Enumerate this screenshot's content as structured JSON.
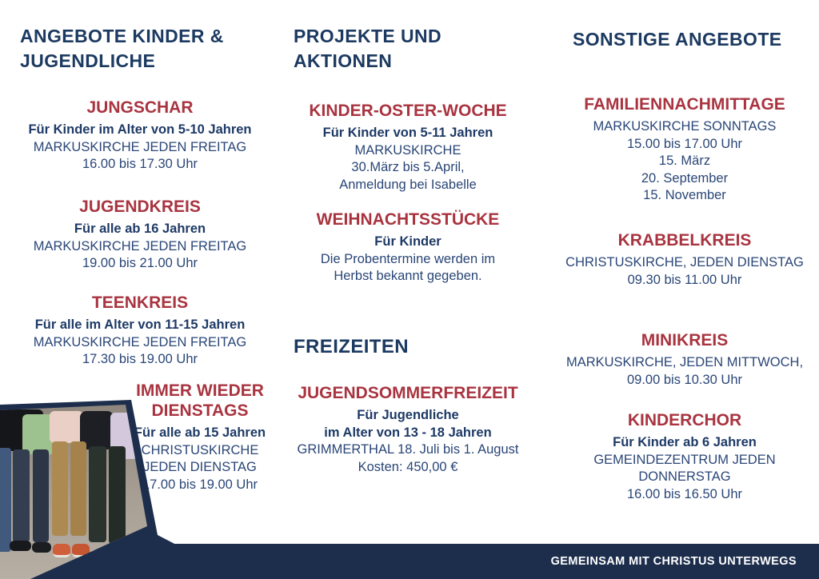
{
  "colors": {
    "navy_heading": "#1c3a61",
    "navy_body": "#2a4677",
    "navy_bar": "#1d2e4d",
    "accent_red": "#a93440",
    "footer_text": "#ffffff"
  },
  "columns": [
    {
      "header": "ANGEBOTE KINDER & JUGENDLICHE",
      "sections": [
        {
          "title": "JUNGSCHAR",
          "lines": [
            "Für Kinder im Alter von 5-10 Jahren",
            "MARKUSKIRCHE JEDEN FREITAG",
            "16.00 bis 17.30 Uhr"
          ]
        },
        {
          "title": "JUGENDKREIS",
          "lines": [
            "Für alle ab 16 Jahren",
            "MARKUSKIRCHE JEDEN FREITAG",
            "19.00 bis 21.00 Uhr"
          ]
        },
        {
          "title": "TEENKREIS",
          "lines": [
            "Für alle im Alter von 11-15 Jahren",
            "MARKUSKIRCHE JEDEN FREITAG",
            "17.30 bis 19.00 Uhr"
          ]
        },
        {
          "title": "IMMER WIEDER DIENSTAGS",
          "lines": [
            "Für alle ab 15 Jahren",
            "CHRISTUSKIRCHE",
            "JEDEN DIENSTAG",
            "17.00 bis 19.00 Uhr"
          ]
        }
      ]
    },
    {
      "header": "PROJEKTE UND AKTIONEN",
      "subheader": "FREIZEITEN",
      "sections": [
        {
          "title": "KINDER-OSTER-WOCHE",
          "lines": [
            "Für Kinder von 5-11 Jahren",
            "MARKUSKIRCHE",
            "30.März bis 5.April,",
            "Anmeldung bei Isabelle"
          ]
        },
        {
          "title": "WEIHNACHTSSTÜCKE",
          "lines": [
            "Für Kinder",
            "Die Probentermine werden im",
            "Herbst bekannt gegeben."
          ]
        },
        {
          "title": "JUGENDSOMMERFREIZEIT",
          "lines": [
            "Für Jugendliche",
            "im Alter von 13 - 18 Jahren",
            "GRIMMERTHAL 18. Juli bis 1. August",
            "Kosten: 450,00 €"
          ]
        }
      ]
    },
    {
      "header": "SONSTIGE ANGEBOTE",
      "sections": [
        {
          "title": "FAMILIENNACHMITTAGE",
          "lines": [
            "MARKUSKIRCHE SONNTAGS",
            "15.00 bis 17.00 Uhr",
            "15. März",
            "20. September",
            "15. November"
          ]
        },
        {
          "title": "KRABBELKREIS",
          "lines": [
            "CHRISTUSKIRCHE, JEDEN DIENSTAG",
            "09.30 bis 11.00 Uhr"
          ]
        },
        {
          "title": "MINIKREIS",
          "lines": [
            "MARKUSKIRCHE, JEDEN MITTWOCH,",
            "09.00 bis 10.30 Uhr"
          ]
        },
        {
          "title": "KINDERCHOR",
          "lines": [
            "Für Kinder ab 6 Jahren",
            "GEMEINDEZENTRUM JEDEN",
            "DONNERSTAG",
            "16.00 bis 16.50 Uhr"
          ]
        }
      ]
    }
  ],
  "footer": {
    "slogan": "GEMEINSAM MIT CHRISTUS UNTERWEGS"
  }
}
